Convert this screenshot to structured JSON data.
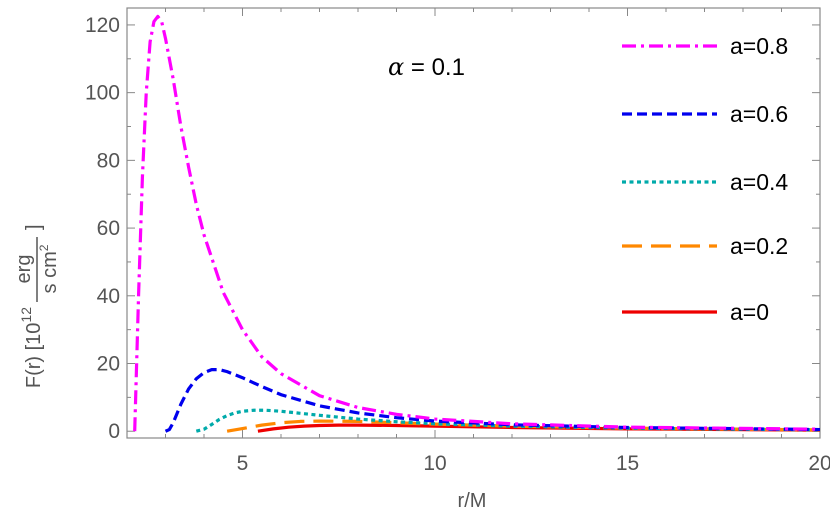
{
  "chart_data": {
    "type": "line",
    "title": "",
    "annotation": {
      "symbol": "α",
      "text": " = 0.1"
    },
    "xlabel": "r/M",
    "ylabel": {
      "prefix": "F(r) [10",
      "exponent": "12",
      "numerator": "erg",
      "denominator": "s cm",
      "denominator_exponent": "2",
      "suffix": "]"
    },
    "xlim": [
      2,
      20
    ],
    "ylim": [
      -2,
      125
    ],
    "x_ticks": [
      5,
      10,
      15,
      20
    ],
    "y_ticks": [
      0,
      20,
      40,
      60,
      80,
      100,
      120
    ],
    "grid": false,
    "legend_position": "top-right",
    "series": [
      {
        "name": "a=0.8",
        "color": "#ff00ff",
        "dash": "dashdot",
        "x": [
          2.2,
          2.3,
          2.4,
          2.5,
          2.6,
          2.7,
          2.8,
          2.9,
          3.0,
          3.2,
          3.4,
          3.6,
          3.8,
          4.0,
          4.5,
          5.0,
          5.5,
          6.0,
          7.0,
          8.0,
          9.0,
          10.0,
          12.0,
          15.0,
          20.0
        ],
        "y": [
          0,
          40,
          75,
          100,
          115,
          121,
          122.5,
          121,
          116,
          104,
          90,
          78,
          67,
          58,
          41,
          30,
          22,
          17,
          10.5,
          7,
          5,
          3.6,
          2.2,
          1.2,
          0.6
        ]
      },
      {
        "name": "a=0.6",
        "color": "#0000ee",
        "dash": "dashed",
        "x": [
          3.0,
          3.1,
          3.2,
          3.4,
          3.6,
          3.8,
          4.0,
          4.2,
          4.4,
          4.6,
          5.0,
          5.5,
          6.0,
          7.0,
          8.0,
          9.0,
          10.0,
          12.0,
          15.0,
          20.0
        ],
        "y": [
          0,
          0.5,
          2.5,
          8,
          12.5,
          15.5,
          17.3,
          18.2,
          18.2,
          17.6,
          15.8,
          13.2,
          10.8,
          7.5,
          5.4,
          4.0,
          3.0,
          1.9,
          1.1,
          0.5
        ]
      },
      {
        "name": "a=0.4",
        "color": "#00aaaa",
        "dash": "dotted",
        "x": [
          3.8,
          4.0,
          4.2,
          4.4,
          4.6,
          4.8,
          5.0,
          5.3,
          5.6,
          6.0,
          6.5,
          7.0,
          8.0,
          9.0,
          10.0,
          12.0,
          15.0,
          20.0
        ],
        "y": [
          0,
          0.6,
          2,
          3.5,
          4.6,
          5.4,
          5.9,
          6.2,
          6.2,
          5.9,
          5.3,
          4.7,
          3.6,
          2.8,
          2.2,
          1.5,
          0.9,
          0.4
        ]
      },
      {
        "name": "a=0.2",
        "color": "#ff8800",
        "dash": "longdash",
        "x": [
          4.6,
          5.0,
          5.5,
          6.0,
          6.5,
          7.0,
          8.0,
          9.0,
          10.0,
          12.0,
          15.0,
          20.0
        ],
        "y": [
          0,
          0.8,
          1.8,
          2.5,
          2.9,
          3.0,
          2.9,
          2.5,
          2.1,
          1.5,
          0.9,
          0.4
        ]
      },
      {
        "name": "a=0",
        "color": "#ee0000",
        "dash": "solid",
        "x": [
          5.4,
          5.8,
          6.2,
          6.6,
          7.0,
          7.5,
          8.0,
          9.0,
          10.0,
          12.0,
          15.0,
          20.0
        ],
        "y": [
          0,
          0.7,
          1.2,
          1.5,
          1.7,
          1.8,
          1.8,
          1.7,
          1.5,
          1.1,
          0.7,
          0.3
        ]
      }
    ]
  }
}
